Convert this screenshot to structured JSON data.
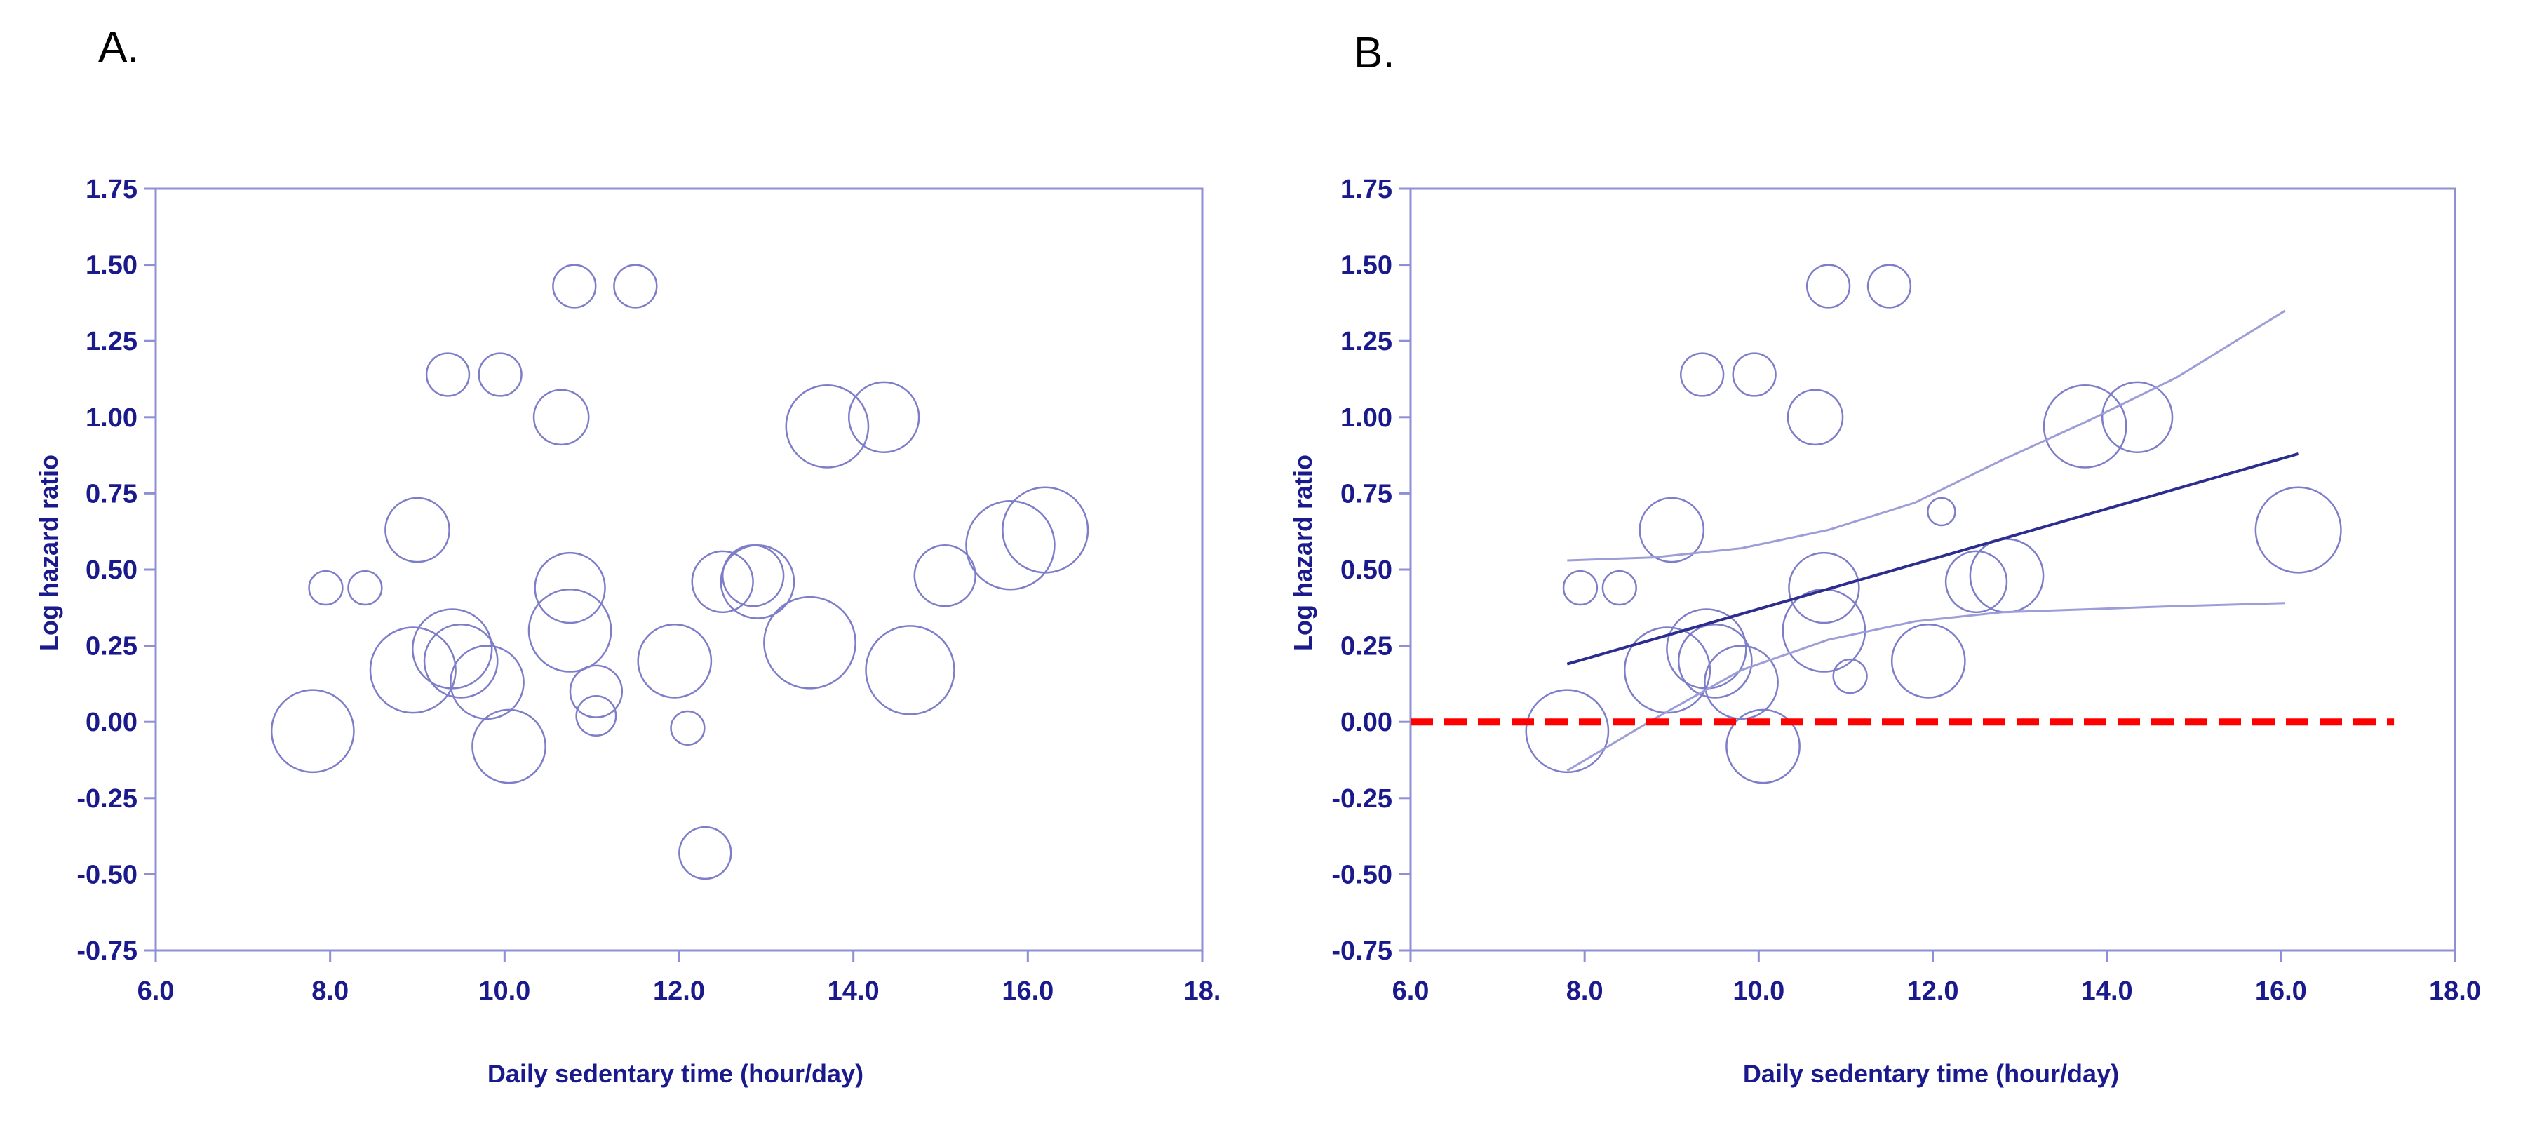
{
  "colors": {
    "axis": "#8f8fd6",
    "bubble": "#7d7dc9",
    "tick_text": "#1a1a8c",
    "regression": "#2d2d8f",
    "ci": "#9d9dd8",
    "reference": "#ff0000"
  },
  "chart_data": [
    {
      "type": "scatter",
      "variant": "bubble",
      "panel_label": "A.",
      "xlabel": "Daily sedentary time (hour/day)",
      "ylabel": "Log hazard ratio",
      "xlim": [
        6.0,
        18.0
      ],
      "ylim": [
        -0.75,
        1.75
      ],
      "x_ticks": [
        6,
        8,
        10,
        12,
        14,
        16,
        18
      ],
      "x_tick_labels": [
        "6.0",
        "8.0",
        "10.0",
        "12.0",
        "14.0",
        "16.0",
        "18."
      ],
      "y_ticks": [
        -0.75,
        -0.5,
        -0.25,
        0,
        0.25,
        0.5,
        0.75,
        1,
        1.25,
        1.5,
        1.75
      ],
      "y_tick_labels": [
        "-0.75",
        "-0.50",
        "-0.25",
        "0.00",
        "0.25",
        "0.50",
        "0.75",
        "1.00",
        "1.25",
        "1.50",
        "1.75"
      ],
      "bubble_radius_units": "y (log hazard ratio)",
      "points": [
        {
          "x": 7.8,
          "y": -0.03,
          "r": 0.135
        },
        {
          "x": 7.95,
          "y": 0.44,
          "r": 0.055
        },
        {
          "x": 8.4,
          "y": 0.44,
          "r": 0.055
        },
        {
          "x": 8.95,
          "y": 0.17,
          "r": 0.14
        },
        {
          "x": 9.0,
          "y": 0.63,
          "r": 0.105
        },
        {
          "x": 9.35,
          "y": 1.14,
          "r": 0.07
        },
        {
          "x": 9.4,
          "y": 0.24,
          "r": 0.13
        },
        {
          "x": 9.5,
          "y": 0.2,
          "r": 0.12
        },
        {
          "x": 9.8,
          "y": 0.13,
          "r": 0.12
        },
        {
          "x": 9.95,
          "y": 1.14,
          "r": 0.07
        },
        {
          "x": 10.05,
          "y": -0.08,
          "r": 0.12
        },
        {
          "x": 10.65,
          "y": 1.0,
          "r": 0.09
        },
        {
          "x": 10.75,
          "y": 0.44,
          "r": 0.115
        },
        {
          "x": 10.75,
          "y": 0.3,
          "r": 0.135
        },
        {
          "x": 10.8,
          "y": 1.43,
          "r": 0.07
        },
        {
          "x": 11.05,
          "y": 0.1,
          "r": 0.085
        },
        {
          "x": 11.05,
          "y": 0.02,
          "r": 0.065
        },
        {
          "x": 11.5,
          "y": 1.43,
          "r": 0.07
        },
        {
          "x": 11.95,
          "y": 0.2,
          "r": 0.12
        },
        {
          "x": 12.1,
          "y": -0.02,
          "r": 0.055
        },
        {
          "x": 12.3,
          "y": -0.43,
          "r": 0.085
        },
        {
          "x": 12.5,
          "y": 0.46,
          "r": 0.1
        },
        {
          "x": 12.85,
          "y": 0.48,
          "r": 0.1
        },
        {
          "x": 12.9,
          "y": 0.46,
          "r": 0.12
        },
        {
          "x": 13.5,
          "y": 0.26,
          "r": 0.15
        },
        {
          "x": 13.7,
          "y": 0.97,
          "r": 0.135
        },
        {
          "x": 14.35,
          "y": 1.0,
          "r": 0.115
        },
        {
          "x": 14.65,
          "y": 0.17,
          "r": 0.145
        },
        {
          "x": 15.05,
          "y": 0.48,
          "r": 0.1
        },
        {
          "x": 15.8,
          "y": 0.58,
          "r": 0.145
        },
        {
          "x": 16.2,
          "y": 0.63,
          "r": 0.14
        }
      ]
    },
    {
      "type": "scatter",
      "variant": "bubble",
      "panel_label": "B.",
      "xlabel": "Daily sedentary time (hour/day)",
      "ylabel": "Log hazard ratio",
      "xlim": [
        6.0,
        18.0
      ],
      "ylim": [
        -0.75,
        1.75
      ],
      "x_ticks": [
        6,
        8,
        10,
        12,
        14,
        16,
        18
      ],
      "x_tick_labels": [
        "6.0",
        "8.0",
        "10.0",
        "12.0",
        "14.0",
        "16.0",
        "18.0"
      ],
      "y_ticks": [
        -0.75,
        -0.5,
        -0.25,
        0,
        0.25,
        0.5,
        0.75,
        1,
        1.25,
        1.5,
        1.75
      ],
      "y_tick_labels": [
        "-0.75",
        "-0.50",
        "-0.25",
        "0.00",
        "0.25",
        "0.50",
        "0.75",
        "1.00",
        "1.25",
        "1.50",
        "1.75"
      ],
      "bubble_radius_units": "y (log hazard ratio)",
      "points": [
        {
          "x": 7.8,
          "y": -0.03,
          "r": 0.135
        },
        {
          "x": 7.95,
          "y": 0.44,
          "r": 0.055
        },
        {
          "x": 8.4,
          "y": 0.44,
          "r": 0.055
        },
        {
          "x": 8.95,
          "y": 0.17,
          "r": 0.14
        },
        {
          "x": 9.0,
          "y": 0.63,
          "r": 0.105
        },
        {
          "x": 9.35,
          "y": 1.14,
          "r": 0.07
        },
        {
          "x": 9.4,
          "y": 0.24,
          "r": 0.13
        },
        {
          "x": 9.5,
          "y": 0.2,
          "r": 0.12
        },
        {
          "x": 9.8,
          "y": 0.13,
          "r": 0.12
        },
        {
          "x": 9.95,
          "y": 1.14,
          "r": 0.07
        },
        {
          "x": 10.05,
          "y": -0.08,
          "r": 0.12
        },
        {
          "x": 10.65,
          "y": 1.0,
          "r": 0.09
        },
        {
          "x": 10.75,
          "y": 0.44,
          "r": 0.115
        },
        {
          "x": 10.75,
          "y": 0.3,
          "r": 0.135
        },
        {
          "x": 10.8,
          "y": 1.43,
          "r": 0.07
        },
        {
          "x": 11.05,
          "y": 0.15,
          "r": 0.055
        },
        {
          "x": 11.5,
          "y": 1.43,
          "r": 0.07
        },
        {
          "x": 11.95,
          "y": 0.2,
          "r": 0.12
        },
        {
          "x": 12.1,
          "y": 0.69,
          "r": 0.045
        },
        {
          "x": 12.5,
          "y": 0.46,
          "r": 0.1
        },
        {
          "x": 12.85,
          "y": 0.48,
          "r": 0.12
        },
        {
          "x": 13.75,
          "y": 0.97,
          "r": 0.135
        },
        {
          "x": 14.35,
          "y": 1.0,
          "r": 0.115
        },
        {
          "x": 16.2,
          "y": 0.63,
          "r": 0.14
        }
      ],
      "lines": [
        {
          "name": "regression",
          "x": [
            7.8,
            16.2
          ],
          "y": [
            0.19,
            0.88
          ]
        },
        {
          "name": "upper-ci",
          "x": [
            7.8,
            8.8,
            9.8,
            10.8,
            11.8,
            12.8,
            13.8,
            14.8,
            16.05
          ],
          "y": [
            0.53,
            0.54,
            0.57,
            0.63,
            0.72,
            0.86,
            0.99,
            1.13,
            1.35
          ]
        },
        {
          "name": "lower-ci",
          "x": [
            7.8,
            8.8,
            9.8,
            10.8,
            11.8,
            12.8,
            13.8,
            14.8,
            16.05
          ],
          "y": [
            -0.16,
            0.01,
            0.17,
            0.27,
            0.33,
            0.36,
            0.37,
            0.38,
            0.39
          ]
        },
        {
          "name": "reference-zero",
          "x": [
            6.0,
            17.3
          ],
          "y": [
            0.0,
            0.0
          ],
          "dashed": true
        }
      ]
    }
  ]
}
